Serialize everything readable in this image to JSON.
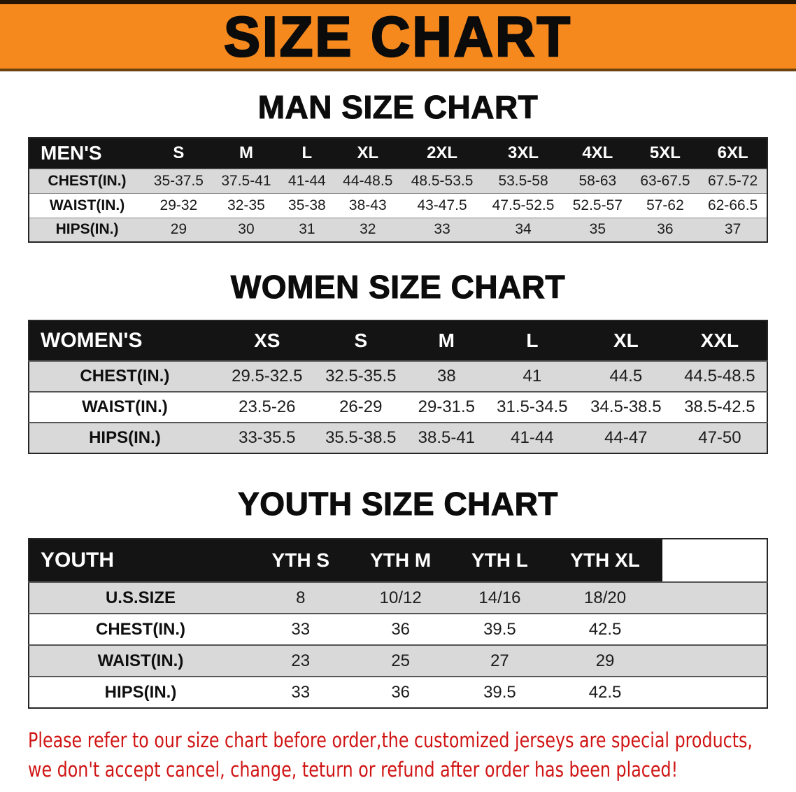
{
  "banner": {
    "title": "SIZE CHART",
    "background_color": "#f6891e"
  },
  "sections": [
    {
      "heading": "MAN SIZE CHART",
      "table": {
        "title": "MEN'S",
        "sizes": [
          "S",
          "M",
          "L",
          "XL",
          "2XL",
          "3XL",
          "4XL",
          "5XL",
          "6XL"
        ],
        "rows": [
          {
            "label": "CHEST(IN.)",
            "values": [
              "35-37.5",
              "37.5-41",
              "41-44",
              "44-48.5",
              "48.5-53.5",
              "53.5-58",
              "58-63",
              "63-67.5",
              "67.5-72"
            ]
          },
          {
            "label": "WAIST(IN.)",
            "values": [
              "29-32",
              "32-35",
              "35-38",
              "38-43",
              "43-47.5",
              "47.5-52.5",
              "52.5-57",
              "57-62",
              "62-66.5"
            ]
          },
          {
            "label": "HIPS(IN.)",
            "values": [
              "29",
              "30",
              "31",
              "32",
              "33",
              "34",
              "35",
              "36",
              "37"
            ]
          }
        ]
      }
    },
    {
      "heading": "WOMEN SIZE CHART",
      "table": {
        "title": "WOMEN'S",
        "sizes": [
          "XS",
          "S",
          "M",
          "L",
          "XL",
          "XXL"
        ],
        "rows": [
          {
            "label": "CHEST(IN.)",
            "values": [
              "29.5-32.5",
              "32.5-35.5",
              "38",
              "41",
              "44.5",
              "44.5-48.5"
            ]
          },
          {
            "label": "WAIST(IN.)",
            "values": [
              "23.5-26",
              "26-29",
              "29-31.5",
              "31.5-34.5",
              "34.5-38.5",
              "38.5-42.5"
            ]
          },
          {
            "label": "HIPS(IN.)",
            "values": [
              "33-35.5",
              "35.5-38.5",
              "38.5-41",
              "41-44",
              "44-47",
              "47-50"
            ]
          }
        ]
      }
    },
    {
      "heading": "YOUTH SIZE CHART",
      "table": {
        "title": "YOUTH",
        "sizes": [
          "YTH S",
          "YTH M",
          "YTH L",
          "YTH XL"
        ],
        "rows": [
          {
            "label": "U.S.SIZE",
            "values": [
              "8",
              "10/12",
              "14/16",
              "18/20"
            ]
          },
          {
            "label": "CHEST(IN.)",
            "values": [
              "33",
              "36",
              "39.5",
              "42.5"
            ]
          },
          {
            "label": "WAIST(IN.)",
            "values": [
              "23",
              "25",
              "27",
              "29"
            ]
          },
          {
            "label": "HIPS(IN.)",
            "values": [
              "33",
              "36",
              "39.5",
              "42.5"
            ]
          }
        ]
      }
    }
  ],
  "disclaimer": {
    "color": "#d01414",
    "lines": [
      "Please refer to our size chart before order,the customized jerseys are special products,",
      "we don't accept cancel, change, teturn or refund after order has been placed!"
    ]
  }
}
